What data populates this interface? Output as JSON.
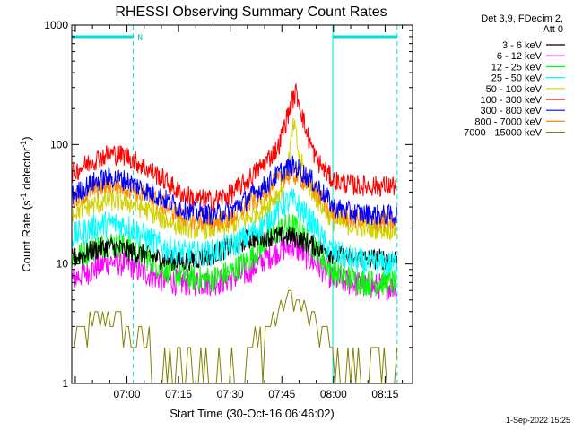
{
  "chart_data": {
    "type": "line",
    "title": "RHESSI Observing Summary Count Rates",
    "xlabel": "Start Time (30-Oct-16 06:46:02)",
    "ylabel_main": "Count Rate (s",
    "ylabel_sup1": "-1",
    "ylabel_mid": " detector",
    "ylabel_sup2": "-1",
    "ylabel_end": ")",
    "yscale": "log",
    "ylim": [
      1,
      1000
    ],
    "xlim_minutes": [
      -16.03,
      82.97
    ],
    "x_tick_labels": [
      "07:00",
      "07:15",
      "07:30",
      "07:45",
      "08:00",
      "08:15"
    ],
    "x_tick_minutes": [
      0,
      15,
      30,
      45,
      60,
      75
    ],
    "y_tick_labels": [
      "1",
      "10",
      "100",
      "1000"
    ],
    "y_tick_values": [
      1,
      10,
      100,
      1000
    ],
    "legend_header": [
      "Det 3,9, FDecim 2,",
      "Att 0"
    ],
    "night_marker": "N",
    "night_periods_minutes": [
      [
        -16.03,
        1.8
      ],
      [
        59.8,
        78.5
      ]
    ],
    "timestamp": "1-Sep-2022 15:25",
    "series": [
      {
        "name": "3 - 6 keV",
        "color": "#000000",
        "x": [
          -16,
          -10,
          -5,
          0,
          5,
          10,
          15,
          20,
          25,
          30,
          35,
          40,
          45,
          48,
          50,
          55,
          58,
          60,
          65,
          70,
          75,
          78
        ],
        "y": [
          11,
          13,
          14,
          13,
          12,
          11,
          10.5,
          11,
          12,
          14,
          16,
          17,
          17,
          17,
          16,
          14,
          13,
          12,
          11,
          11,
          11,
          11
        ]
      },
      {
        "name": "6 - 12 keV",
        "color": "#ff00ff",
        "x": [
          -16,
          -10,
          -5,
          0,
          5,
          10,
          15,
          20,
          25,
          30,
          35,
          40,
          45,
          48,
          50,
          55,
          58,
          60,
          65,
          70,
          75,
          78
        ],
        "y": [
          7.5,
          9,
          10.5,
          10,
          8.5,
          7.5,
          7,
          7,
          7,
          7.5,
          8.5,
          11,
          13.5,
          14,
          13,
          10,
          8.5,
          7.5,
          7,
          6.5,
          6.5,
          6.5
        ]
      },
      {
        "name": "12 - 25 keV",
        "color": "#00ff00",
        "x": [
          -16,
          -10,
          -5,
          0,
          5,
          10,
          15,
          20,
          25,
          30,
          35,
          40,
          45,
          48,
          50,
          55,
          58,
          60,
          65,
          70,
          75,
          78
        ],
        "y": [
          11,
          13.5,
          15,
          14,
          11.5,
          9.5,
          8,
          7.5,
          7.5,
          8.5,
          10.5,
          15,
          20,
          21,
          19,
          13,
          10,
          8.5,
          7.5,
          7,
          7,
          7
        ]
      },
      {
        "name": "25 - 50 keV",
        "color": "#00ffff",
        "x": [
          -16,
          -10,
          -5,
          0,
          5,
          10,
          15,
          20,
          25,
          30,
          35,
          40,
          45,
          48,
          50,
          55,
          58,
          60,
          65,
          70,
          75,
          78
        ],
        "y": [
          17,
          20,
          22,
          21,
          17,
          14,
          12.5,
          12,
          12.5,
          14,
          17,
          22,
          31,
          34,
          30,
          20,
          14,
          12.5,
          11,
          10,
          10,
          10
        ]
      },
      {
        "name": "50 - 100 keV",
        "color": "#d2d200",
        "x": [
          -16,
          -10,
          -5,
          0,
          5,
          10,
          15,
          20,
          25,
          30,
          35,
          40,
          45,
          47,
          48.5,
          50,
          53,
          56,
          58,
          60,
          65,
          70,
          75,
          78
        ],
        "y": [
          27,
          31,
          34,
          33,
          29,
          24,
          21,
          19.5,
          19.5,
          21,
          24,
          30,
          42,
          75,
          150,
          80,
          45,
          32,
          27,
          23,
          21,
          20,
          19.5,
          19.5
        ]
      },
      {
        "name": "100 - 300 keV",
        "color": "#ff0000",
        "x": [
          -16,
          -10,
          -5,
          0,
          5,
          10,
          15,
          20,
          25,
          30,
          35,
          40,
          44,
          46,
          48,
          49,
          50,
          52,
          55,
          58,
          60,
          65,
          70,
          75,
          78
        ],
        "y": [
          58,
          73,
          84,
          80,
          65,
          53,
          40,
          35,
          34,
          38,
          50,
          70,
          95,
          150,
          230,
          270,
          230,
          130,
          75,
          58,
          50,
          46,
          45,
          45,
          45
        ]
      },
      {
        "name": "300 - 800 keV",
        "color": "#0000ff",
        "x": [
          -16,
          -10,
          -5,
          0,
          5,
          10,
          15,
          20,
          25,
          30,
          35,
          40,
          45,
          48,
          50,
          55,
          58,
          60,
          65,
          70,
          75,
          78
        ],
        "y": [
          37,
          48,
          53,
          50,
          42,
          36,
          30,
          27,
          26,
          28,
          35,
          45,
          60,
          66,
          62,
          46,
          36,
          30,
          27,
          26,
          25.5,
          25.5
        ]
      },
      {
        "name": "800 - 7000 keV",
        "color": "#ff8c00",
        "x": [
          -16,
          -10,
          -5,
          0,
          5,
          10,
          15,
          20,
          25,
          30,
          35,
          40,
          45,
          48,
          50,
          55,
          58,
          60,
          65,
          70,
          75,
          78
        ],
        "y": [
          33,
          42,
          46,
          44,
          38,
          32,
          26,
          23,
          22.5,
          24,
          31,
          40,
          53,
          56,
          54,
          40,
          31,
          27,
          24,
          23,
          22.5,
          22.5
        ]
      },
      {
        "name": "7000 - 15000 keV",
        "color": "#808000",
        "x": [
          -16,
          -10,
          -5,
          0,
          5,
          10,
          15,
          20,
          25,
          30,
          35,
          40,
          45,
          48,
          50,
          55,
          58,
          60,
          65,
          70,
          75,
          78
        ],
        "y": [
          2,
          3,
          3.5,
          3,
          2,
          1.5,
          1.2,
          1.2,
          1.2,
          1.3,
          1.6,
          2.5,
          4.5,
          5.5,
          5,
          3,
          2,
          1.5,
          1.3,
          1.2,
          1.2,
          1.2
        ]
      }
    ]
  }
}
